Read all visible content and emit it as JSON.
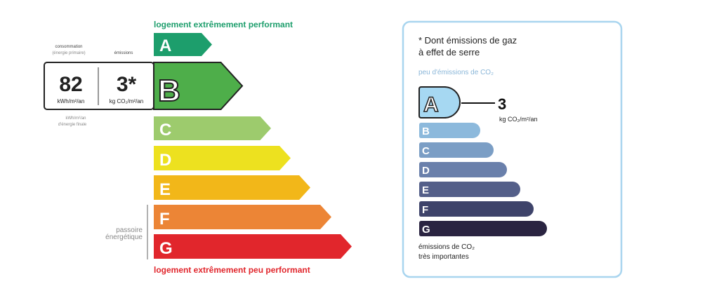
{
  "energy": {
    "top_label": "logement extrêmement performant",
    "bottom_label": "logement extrêmement peu performant",
    "consumption_header_1": "consommation",
    "consumption_header_2": "(énergie primaire)",
    "emissions_header": "émissions",
    "consumption_value": "82",
    "consumption_unit": "kWh/m²/an",
    "emissions_value": "3*",
    "emissions_unit": "kg CO₂/m²/an",
    "final_energy_1": "kWh/m²/an",
    "final_energy_2": "d'énergie finale",
    "passoire_1": "passoire",
    "passoire_2": "énergétique",
    "current_class": "B",
    "classes": [
      {
        "letter": "A",
        "color": "#1d9e6c"
      },
      {
        "letter": "B",
        "color": "#4eae4a"
      },
      {
        "letter": "C",
        "color": "#9dcb6d"
      },
      {
        "letter": "D",
        "color": "#ede11f"
      },
      {
        "letter": "E",
        "color": "#f2b719"
      },
      {
        "letter": "F",
        "color": "#ec8536"
      },
      {
        "letter": "G",
        "color": "#e1262c"
      }
    ]
  },
  "ges": {
    "title_1": "* Dont émissions de gaz",
    "title_2": "à effet de serre",
    "top_label": "peu d'émissions de CO₂",
    "bottom_label_1": "émissions de CO₂",
    "bottom_label_2": "très importantes",
    "current_class": "A",
    "value": "3",
    "unit": "kg CO₂/m²/an",
    "border_color": "#a9d5ef",
    "classes": [
      {
        "letter": "A",
        "color": "#a6d8f2"
      },
      {
        "letter": "B",
        "color": "#8cb9dc"
      },
      {
        "letter": "C",
        "color": "#7b9ec5"
      },
      {
        "letter": "D",
        "color": "#6a80ab"
      },
      {
        "letter": "E",
        "color": "#545f89"
      },
      {
        "letter": "F",
        "color": "#3e436a"
      },
      {
        "letter": "G",
        "color": "#2a2441"
      }
    ]
  }
}
